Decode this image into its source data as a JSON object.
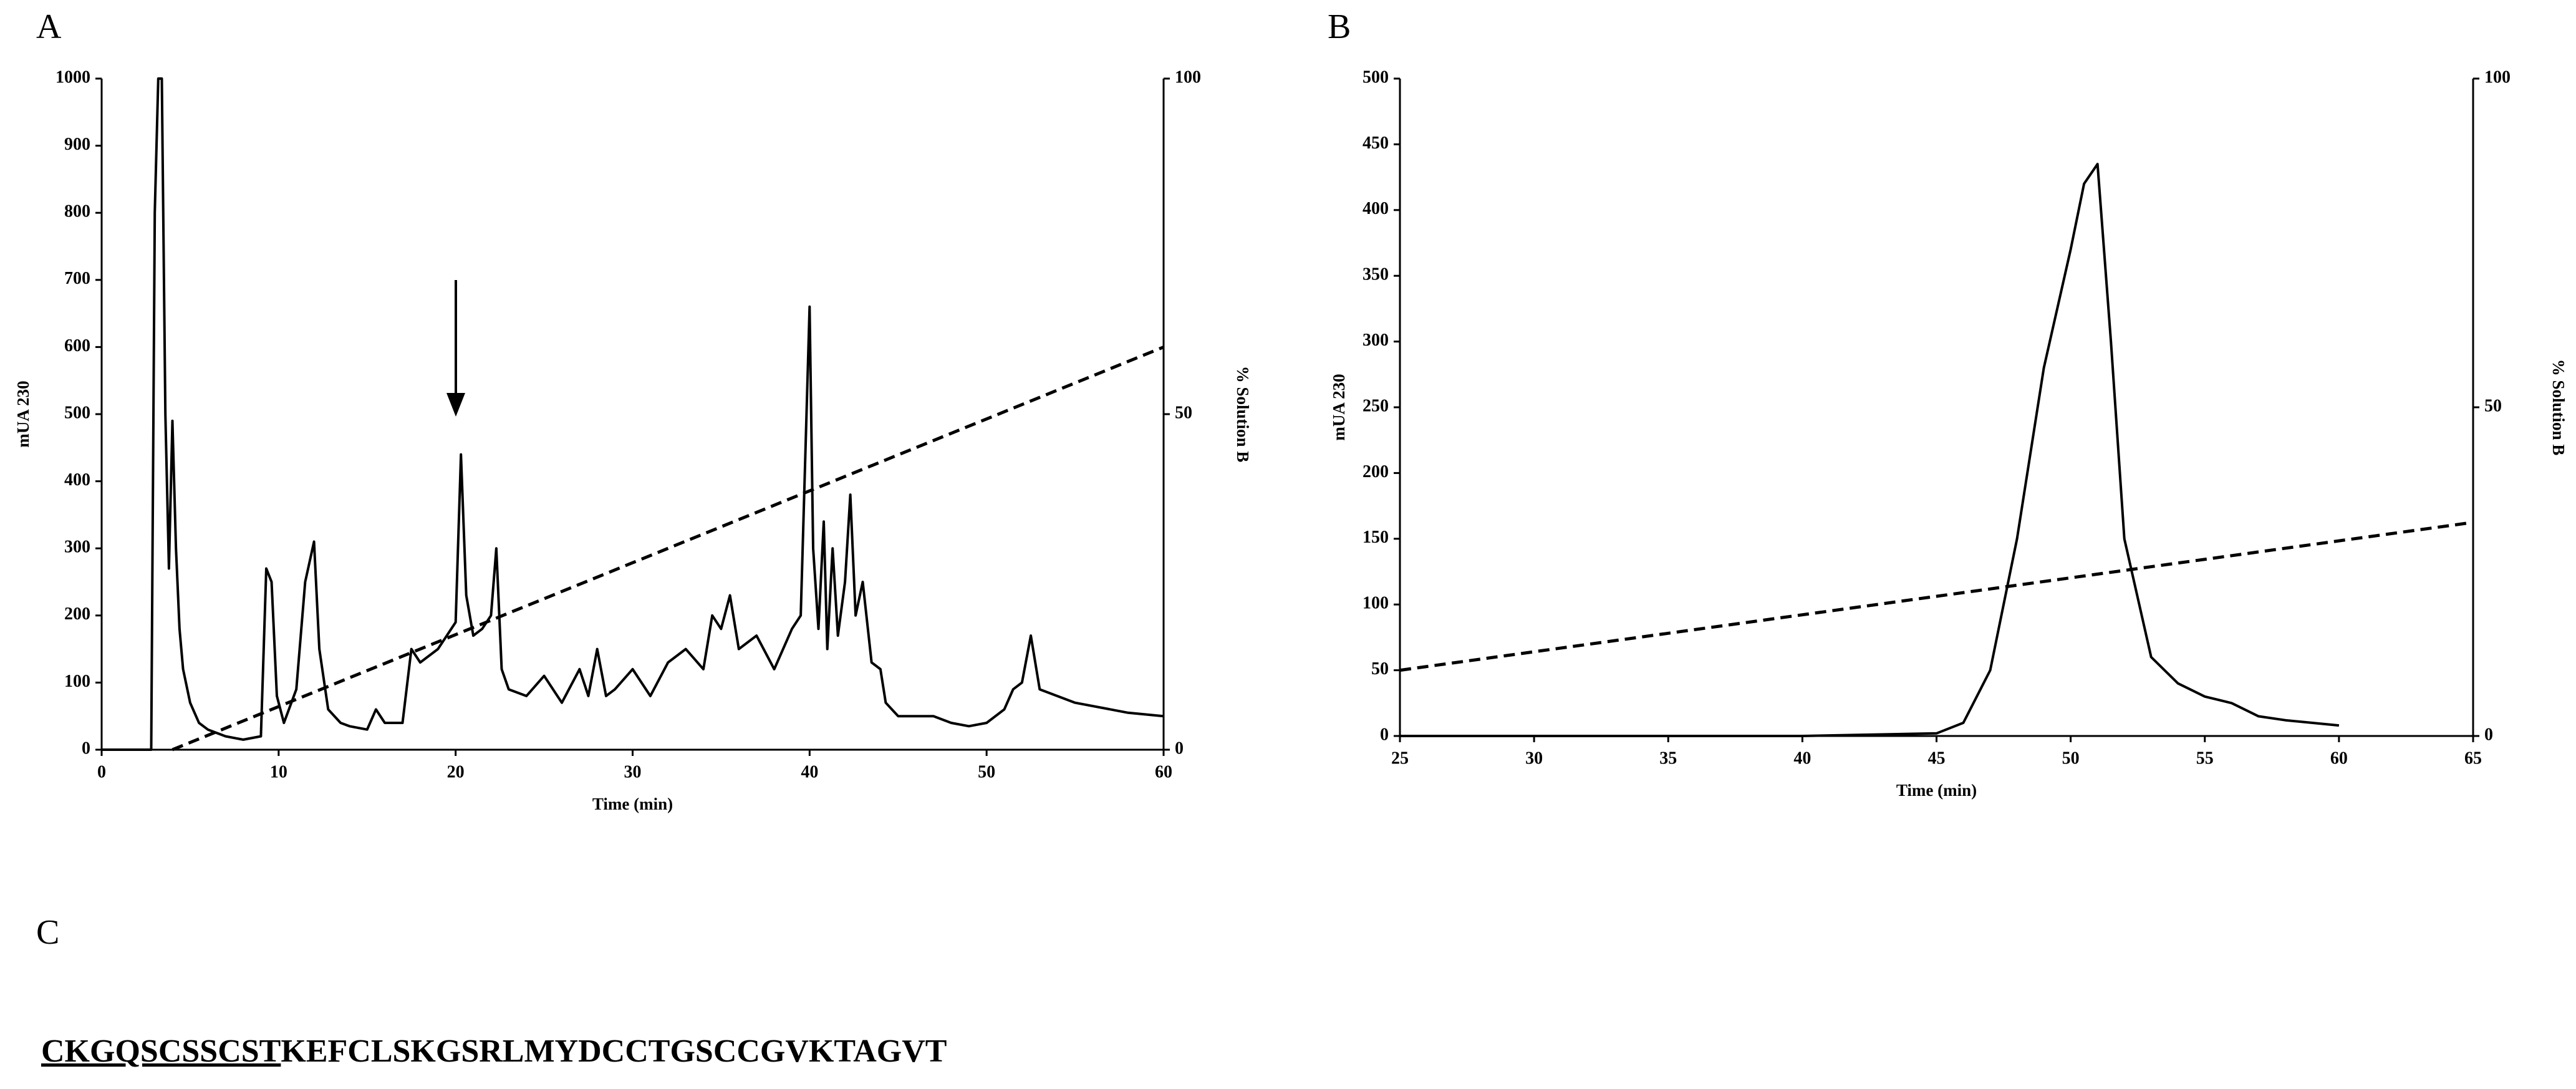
{
  "chart_data": [
    {
      "type": "line",
      "panel_label": "A",
      "x_label": "Time (min)",
      "y_label": "mUA 230",
      "y2_label": "% Solution B",
      "xlim": [
        0,
        60
      ],
      "xticks": [
        0,
        10,
        20,
        30,
        40,
        50,
        60
      ],
      "ylim": [
        0,
        1000
      ],
      "yticks": [
        0,
        100,
        200,
        300,
        400,
        500,
        600,
        700,
        800,
        900,
        1000
      ],
      "y2lim": [
        0,
        100
      ],
      "y2ticks": [
        0,
        50,
        100
      ],
      "series": [
        {
          "color": "#000000",
          "style": "solid",
          "x": [
            0,
            2.8,
            3.0,
            3.2,
            3.4,
            3.6,
            3.8,
            4.0,
            4.2,
            4.4,
            4.6,
            5,
            5.5,
            6,
            7,
            8,
            9,
            9.3,
            9.6,
            9.9,
            10.3,
            11,
            11.5,
            12,
            12.3,
            12.8,
            13.5,
            14,
            15,
            15.5,
            16,
            17,
            17.5,
            18,
            19,
            19.5,
            20,
            20.3,
            20.6,
            21,
            21.5,
            22,
            22.3,
            22.6,
            23,
            24,
            25,
            26,
            27,
            27.5,
            28,
            28.5,
            29,
            30,
            31,
            32,
            33,
            34,
            34.5,
            35,
            35.5,
            36,
            37,
            38,
            39,
            39.5,
            40,
            40.2,
            40.5,
            40.8,
            41,
            41.3,
            41.6,
            42,
            42.3,
            42.6,
            43,
            43.5,
            44,
            44.3,
            45,
            46,
            47,
            48,
            49,
            50,
            51,
            51.5,
            52,
            52.5,
            53,
            55,
            58,
            60
          ],
          "values": [
            0,
            0,
            800,
            1000,
            1000,
            500,
            270,
            490,
            300,
            180,
            120,
            70,
            40,
            30,
            20,
            15,
            20,
            270,
            250,
            80,
            40,
            90,
            250,
            310,
            150,
            60,
            40,
            35,
            30,
            60,
            40,
            40,
            150,
            130,
            150,
            170,
            190,
            440,
            230,
            170,
            180,
            200,
            300,
            120,
            90,
            80,
            110,
            70,
            120,
            80,
            150,
            80,
            90,
            120,
            80,
            130,
            150,
            120,
            200,
            180,
            230,
            150,
            170,
            120,
            180,
            200,
            660,
            300,
            180,
            340,
            150,
            300,
            170,
            250,
            380,
            200,
            250,
            130,
            120,
            70,
            50,
            50,
            50,
            40,
            35,
            40,
            60,
            90,
            100,
            170,
            90,
            70,
            55,
            50
          ]
        },
        {
          "color": "#000000",
          "style": "dashed",
          "axis": "y2",
          "x": [
            4,
            60
          ],
          "values": [
            0,
            60
          ]
        }
      ]
    },
    {
      "type": "line",
      "panel_label": "B",
      "x_label": "Time (min)",
      "y_label": "mUA 230",
      "y2_label": "% Solution B",
      "xlim": [
        25,
        65
      ],
      "xticks": [
        25,
        30,
        35,
        40,
        45,
        50,
        55,
        60,
        65
      ],
      "ylim": [
        0,
        500
      ],
      "yticks": [
        0,
        50,
        100,
        150,
        200,
        250,
        300,
        350,
        400,
        450,
        500
      ],
      "y2lim": [
        0,
        100
      ],
      "y2ticks": [
        0,
        50,
        100
      ],
      "series": [
        {
          "color": "#000000",
          "style": "solid",
          "x": [
            25,
            30,
            35,
            40,
            45,
            46,
            47,
            48,
            49,
            50,
            50.5,
            51,
            51.5,
            52,
            53,
            54,
            55,
            56,
            57,
            58,
            60
          ],
          "values": [
            0,
            0,
            0,
            0,
            2,
            10,
            50,
            150,
            280,
            370,
            420,
            435,
            300,
            150,
            60,
            40,
            30,
            25,
            15,
            12,
            8
          ]
        },
        {
          "color": "#000000",
          "style": "dashed",
          "axis": "y2",
          "x": [
            25,
            65
          ],
          "values": [
            10,
            32.5
          ]
        }
      ]
    }
  ],
  "sequence": {
    "label": "C",
    "underlined": "CKGQSCSSCST",
    "rest": "KEFCLSKGSRLMYDCCTGSCCGVKTAGVT"
  }
}
